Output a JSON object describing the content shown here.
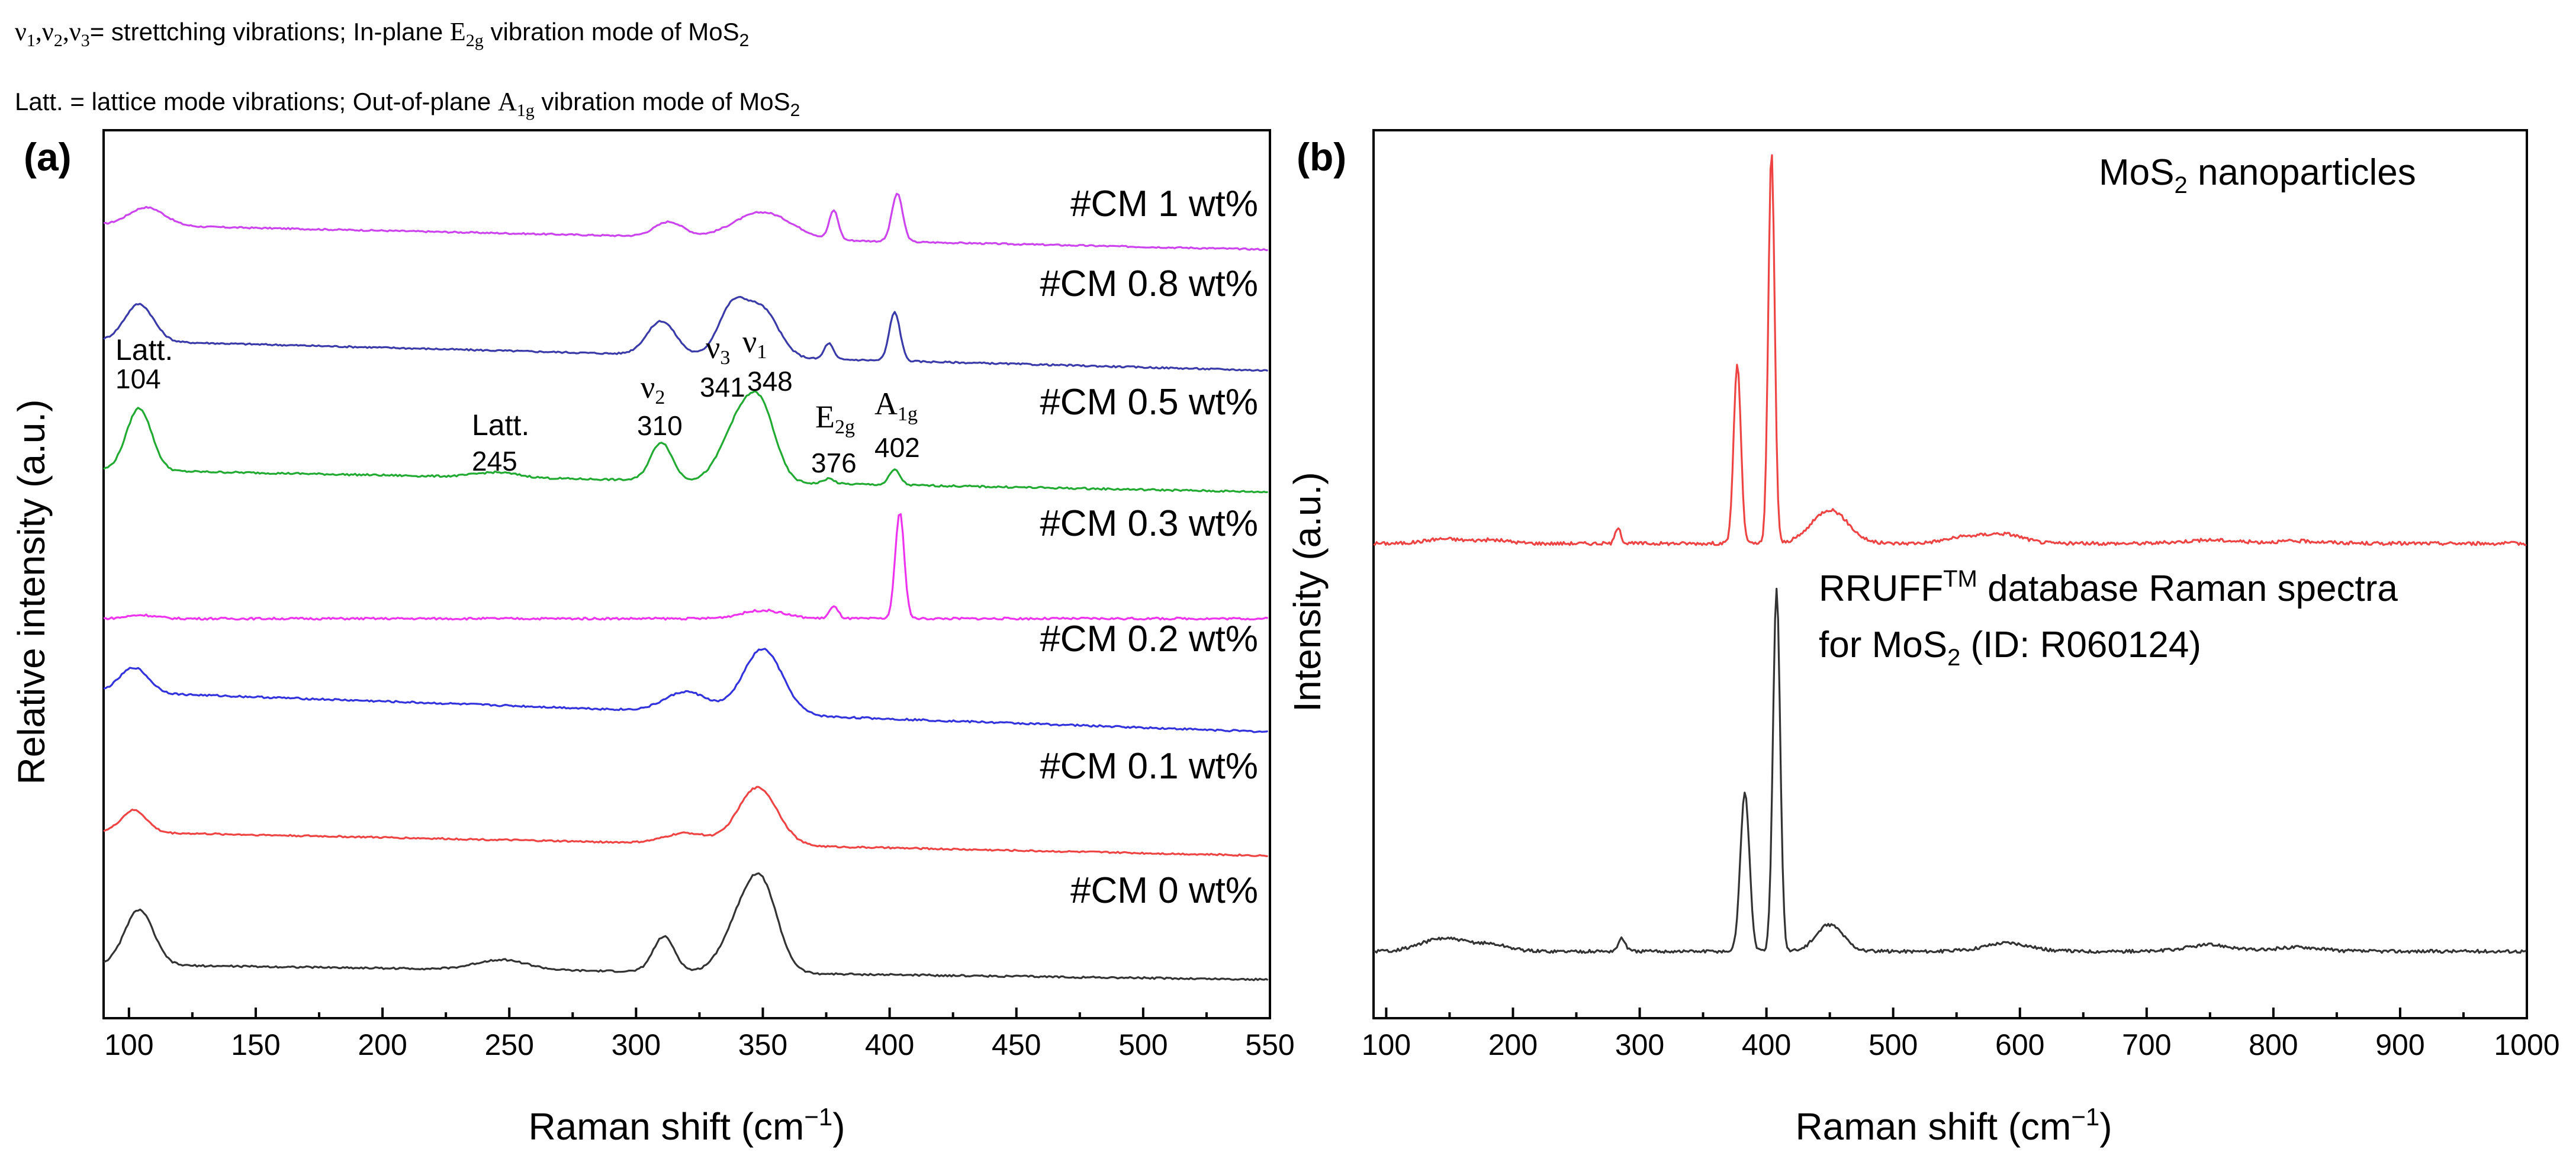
{
  "notes": {
    "line1_greek": "ν",
    "line1_sub1": "1",
    "line1_comma": ",",
    "line1_sub2": "2",
    "line1_sub3": "3",
    "line1_text": "= strettching vibrations; In-plane ",
    "line1_mode": "E",
    "line1_mode_sub": "2g",
    "line1_tail": " vibration mode of MoS",
    "line1_tail_sub": "2",
    "line2_text": "Latt. = lattice mode vibrations; Out-of-plane ",
    "line2_mode": "A",
    "line2_mode_sub": "1g",
    "line2_tail": " vibration mode of MoS",
    "line2_tail_sub": "2"
  },
  "chart_data": [
    {
      "panel": "(a)",
      "type": "line",
      "xlabel_main": "Raman shift (cm",
      "xlabel_sup": "−1",
      "xlabel_close": ")",
      "ylabel": "Relative intensity (a.u.)",
      "xlim": [
        90,
        550
      ],
      "xticks": [
        100,
        150,
        200,
        250,
        300,
        350,
        400,
        450,
        500,
        550
      ],
      "series": [
        {
          "name": "#CM 1 wt%",
          "color": "#cc44ee",
          "baseline": 0.95,
          "hump_start": 0.36,
          "hump_end": 0.06,
          "peaks": [
            [
              107,
              0.22,
              10
            ],
            [
              313,
              0.18,
              8
            ],
            [
              350,
              0.32,
              16
            ],
            [
              378,
              0.35,
              2.5
            ],
            [
              403,
              0.58,
              3
            ]
          ]
        },
        {
          "name": "#CM 0.8 wt%",
          "color": "#3a3aa8",
          "baseline": 0.95,
          "hump_start": 0.4,
          "hump_end": 0.06,
          "peaks": [
            [
              104,
              0.42,
              8
            ],
            [
              310,
              0.38,
              8
            ],
            [
              338,
              0.55,
              8
            ],
            [
              350,
              0.52,
              9
            ],
            [
              376,
              0.18,
              2.5
            ],
            [
              402,
              0.55,
              3
            ]
          ]
        },
        {
          "name": "#CM 0.5 wt%",
          "color": "#22aa33",
          "baseline": 0.95,
          "hump_start": 0.26,
          "hump_end": 0.04,
          "peaks": [
            [
              104,
              0.62,
              7
            ],
            [
              245,
              0.05,
              12
            ],
            [
              310,
              0.38,
              6
            ],
            [
              341,
              0.6,
              10
            ],
            [
              350,
              0.55,
              8
            ],
            [
              376,
              0.05,
              3
            ],
            [
              402,
              0.15,
              3
            ]
          ]
        },
        {
          "name": "#CM 0.3 wt%",
          "color": "#ee33ee",
          "baseline": 0.95,
          "hump_start": 0.0,
          "hump_end": 0.0,
          "peaks": [
            [
              105,
              0.03,
              8
            ],
            [
              350,
              0.07,
              12
            ],
            [
              378,
              0.1,
              2.5
            ],
            [
              404,
              0.9,
              2.5
            ]
          ]
        },
        {
          "name": "#CM 0.2 wt%",
          "color": "#3333dd",
          "baseline": 0.95,
          "hump_start": 0.45,
          "hump_end": 0.05,
          "peaks": [
            [
              102,
              0.25,
              8
            ],
            [
              320,
              0.2,
              12
            ],
            [
              350,
              0.65,
              11
            ]
          ]
        },
        {
          "name": "#CM 0.1 wt%",
          "color": "#ee4444",
          "baseline": 0.95,
          "hump_start": 0.3,
          "hump_end": 0.03,
          "peaks": [
            [
              102,
              0.25,
              7
            ],
            [
              320,
              0.12,
              12
            ],
            [
              348,
              0.65,
              11
            ]
          ]
        },
        {
          "name": "#CM 0 wt%",
          "color": "#333333",
          "baseline": 0.95,
          "hump_start": 0.18,
          "hump_end": 0.03,
          "peaks": [
            [
              104,
              0.55,
              8
            ],
            [
              247,
              0.1,
              14
            ],
            [
              311,
              0.35,
              6
            ],
            [
              341,
              0.45,
              10
            ],
            [
              350,
              0.75,
              9
            ]
          ]
        }
      ],
      "annotations": [
        {
          "label": "Latt.",
          "value": "104"
        },
        {
          "label": "Latt.",
          "value": "245"
        },
        {
          "label": "ν2",
          "value": "310"
        },
        {
          "label": "ν3",
          "value": "341"
        },
        {
          "label": "ν1",
          "value": "348"
        },
        {
          "label": "E2g",
          "value": "376"
        },
        {
          "label": "A1g",
          "value": "402"
        }
      ]
    },
    {
      "panel": "(b)",
      "type": "line",
      "xlabel_main": "Raman shift (cm",
      "xlabel_sup": "−1",
      "xlabel_close": ")",
      "ylabel": "Intensity (a.u.)",
      "xlim": [
        90,
        1000
      ],
      "xticks": [
        100,
        200,
        300,
        400,
        500,
        600,
        700,
        800,
        900,
        1000
      ],
      "series": [
        {
          "name": "MoS2 nanoparticles",
          "color": "#ee4444",
          "peaks": [
            [
              145,
              0.04,
              20
            ],
            [
              183,
              0.03,
              20
            ],
            [
              283,
              0.15,
              3
            ],
            [
              377,
              1.6,
              4
            ],
            [
              404,
              3.5,
              3.5
            ],
            [
              450,
              0.3,
              20
            ],
            [
              560,
              0.06,
              25
            ],
            [
              590,
              0.07,
              20
            ],
            [
              750,
              0.03,
              30
            ],
            [
              820,
              0.02,
              30
            ]
          ]
        },
        {
          "name": "RRUFF database Raman spectra for MoS2 (ID: R060124)",
          "color": "#333333",
          "peaks": [
            [
              145,
              0.12,
              25
            ],
            [
              183,
              0.06,
              20
            ],
            [
              286,
              0.12,
              4
            ],
            [
              383,
              1.5,
              5
            ],
            [
              408,
              3.4,
              4
            ],
            [
              450,
              0.25,
              15
            ],
            [
              590,
              0.08,
              25
            ],
            [
              750,
              0.06,
              25
            ],
            [
              820,
              0.04,
              25
            ]
          ]
        }
      ],
      "legend_labels": {
        "top": "MoS",
        "top_sub": "2",
        "top_tail": " nanoparticles",
        "bottom_a": "RRUFF",
        "bottom_sup": "TM",
        "bottom_b": " database Raman spectra",
        "bottom_c": "for MoS",
        "bottom_c_sub": "2",
        "bottom_d": " (ID: R060124)"
      }
    }
  ]
}
